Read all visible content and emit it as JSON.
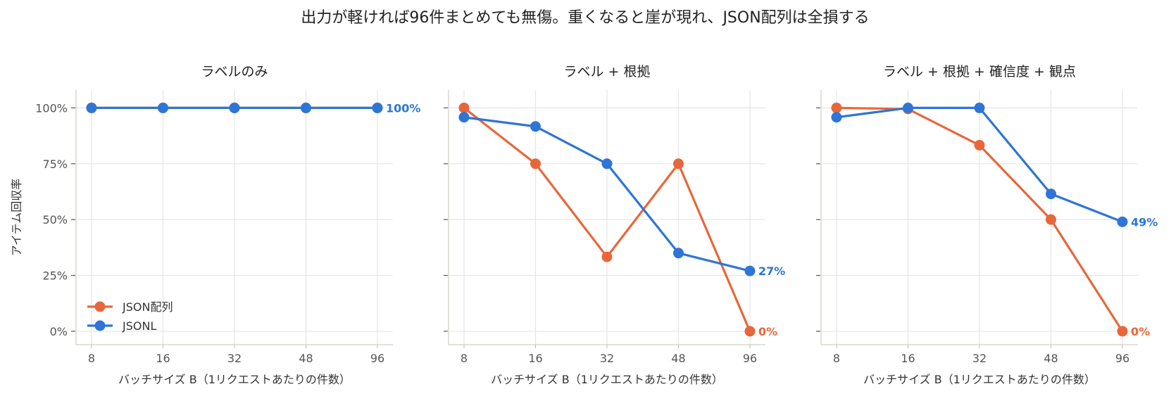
{
  "chart_data": {
    "type": "line",
    "suptitle": "出力が軽ければ96件まとめても無傷。重くなると崖が現れ、JSON配列は全損する",
    "ylabel": "アイテム回収率",
    "xlabel": "バッチサイズ B（1リクエストあたりの件数）",
    "x": [
      8,
      16,
      32,
      48,
      96
    ],
    "x_scale": "categorical",
    "ylim": [
      -0.06,
      1.08
    ],
    "yticks": [
      0,
      0.25,
      0.5,
      0.75,
      1.0
    ],
    "ytick_labels": [
      "0%",
      "25%",
      "50%",
      "75%",
      "100%"
    ],
    "grid": true,
    "legend": {
      "placement": "lower-left",
      "panel": 0
    },
    "series_styles": [
      {
        "name": "JSON配列",
        "color": "#E8673A"
      },
      {
        "name": "JSONL",
        "color": "#2E75D6"
      }
    ],
    "panels": [
      {
        "title": "ラベルのみ",
        "series": [
          {
            "name": "JSON配列",
            "values": [
              1.0,
              1.0,
              1.0,
              1.0,
              1.0
            ]
          },
          {
            "name": "JSONL",
            "values": [
              1.0,
              1.0,
              1.0,
              1.0,
              1.0
            ]
          }
        ],
        "end_labels": [
          {
            "series": "JSONL",
            "text": "100%"
          }
        ]
      },
      {
        "title": "ラベル + 根拠",
        "series": [
          {
            "name": "JSON配列",
            "values": [
              1.0,
              0.75,
              0.333,
              0.75,
              0.0
            ]
          },
          {
            "name": "JSONL",
            "values": [
              0.958,
              0.917,
              0.75,
              0.35,
              0.27
            ]
          }
        ],
        "end_labels": [
          {
            "series": "JSONL",
            "text": "27%"
          },
          {
            "series": "JSON配列",
            "text": "0%"
          }
        ]
      },
      {
        "title": "ラベル + 根拠 + 確信度 + 観点",
        "series": [
          {
            "name": "JSON配列",
            "values": [
              1.0,
              0.995,
              0.833,
              0.5,
              0.0
            ]
          },
          {
            "name": "JSONL",
            "values": [
              0.958,
              1.0,
              1.0,
              0.615,
              0.49
            ]
          }
        ],
        "end_labels": [
          {
            "series": "JSONL",
            "text": "49%"
          },
          {
            "series": "JSON配列",
            "text": "0%"
          }
        ]
      }
    ]
  }
}
